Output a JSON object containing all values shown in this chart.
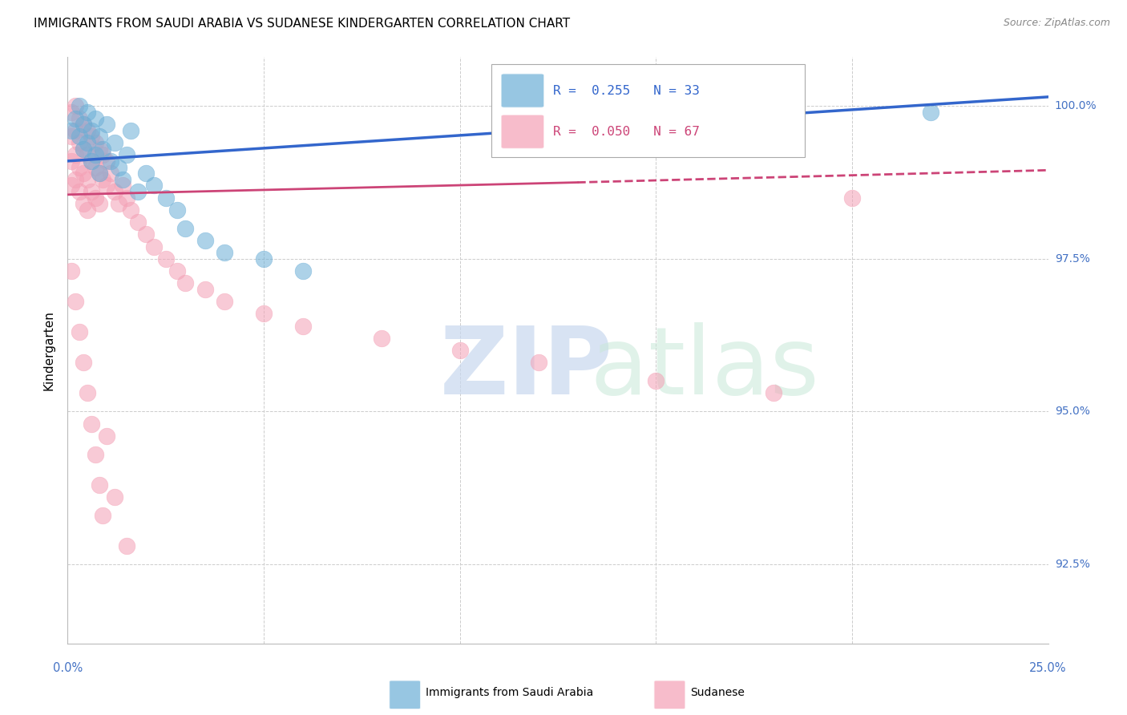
{
  "title": "IMMIGRANTS FROM SAUDI ARABIA VS SUDANESE KINDERGARTEN CORRELATION CHART",
  "source": "Source: ZipAtlas.com",
  "ylabel": "Kindergarten",
  "yticks": [
    92.5,
    95.0,
    97.5,
    100.0
  ],
  "ytick_labels": [
    "92.5%",
    "95.0%",
    "97.5%",
    "100.0%"
  ],
  "saudi_color": "#6baed6",
  "sudanese_color": "#f4a0b5",
  "saudi_line_color": "#3366cc",
  "sudanese_line_color": "#cc4477",
  "axis_label_color": "#4472c4",
  "grid_color": "#cccccc",
  "background_color": "#ffffff",
  "title_fontsize": 11,
  "xmin": 0.0,
  "xmax": 0.25,
  "ymin": 91.2,
  "ymax": 100.8,
  "saudi_x": [
    0.001,
    0.002,
    0.003,
    0.003,
    0.004,
    0.004,
    0.005,
    0.005,
    0.006,
    0.006,
    0.007,
    0.007,
    0.008,
    0.008,
    0.009,
    0.01,
    0.011,
    0.012,
    0.013,
    0.014,
    0.015,
    0.016,
    0.018,
    0.02,
    0.022,
    0.025,
    0.028,
    0.03,
    0.035,
    0.04,
    0.05,
    0.06,
    0.22
  ],
  "saudi_y": [
    99.6,
    99.8,
    100.0,
    99.5,
    99.7,
    99.3,
    99.9,
    99.4,
    99.6,
    99.1,
    99.8,
    99.2,
    99.5,
    98.9,
    99.3,
    99.7,
    99.1,
    99.4,
    99.0,
    98.8,
    99.2,
    99.6,
    98.6,
    98.9,
    98.7,
    98.5,
    98.3,
    98.0,
    97.8,
    97.6,
    97.5,
    97.3,
    99.9
  ],
  "sudanese_x": [
    0.001,
    0.001,
    0.001,
    0.001,
    0.002,
    0.002,
    0.002,
    0.002,
    0.003,
    0.003,
    0.003,
    0.003,
    0.004,
    0.004,
    0.004,
    0.004,
    0.005,
    0.005,
    0.005,
    0.005,
    0.006,
    0.006,
    0.006,
    0.007,
    0.007,
    0.007,
    0.008,
    0.008,
    0.008,
    0.009,
    0.009,
    0.01,
    0.01,
    0.011,
    0.012,
    0.013,
    0.014,
    0.015,
    0.016,
    0.018,
    0.02,
    0.022,
    0.025,
    0.028,
    0.03,
    0.035,
    0.04,
    0.05,
    0.06,
    0.08,
    0.1,
    0.12,
    0.15,
    0.18,
    0.2,
    0.001,
    0.002,
    0.003,
    0.004,
    0.005,
    0.006,
    0.007,
    0.008,
    0.009,
    0.01,
    0.012,
    0.015
  ],
  "sudanese_y": [
    99.9,
    99.5,
    99.1,
    98.7,
    100.0,
    99.6,
    99.2,
    98.8,
    99.8,
    99.4,
    99.0,
    98.6,
    99.7,
    99.3,
    98.9,
    98.4,
    99.6,
    99.2,
    98.8,
    98.3,
    99.5,
    99.1,
    98.6,
    99.4,
    99.0,
    98.5,
    99.3,
    98.9,
    98.4,
    99.2,
    98.8,
    99.1,
    98.7,
    98.9,
    98.6,
    98.4,
    98.7,
    98.5,
    98.3,
    98.1,
    97.9,
    97.7,
    97.5,
    97.3,
    97.1,
    97.0,
    96.8,
    96.6,
    96.4,
    96.2,
    96.0,
    95.8,
    95.5,
    95.3,
    98.5,
    97.3,
    96.8,
    96.3,
    95.8,
    95.3,
    94.8,
    94.3,
    93.8,
    93.3,
    94.6,
    93.6,
    92.8
  ]
}
